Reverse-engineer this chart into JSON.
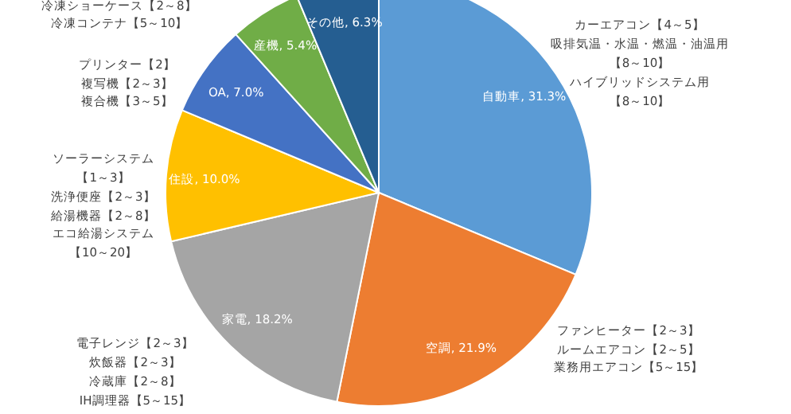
{
  "chart_data": {
    "type": "pie",
    "categories": [
      "自動車",
      "空調",
      "家電",
      "住設",
      "OA",
      "産機",
      "その他"
    ],
    "values": [
      31.3,
      21.9,
      18.2,
      10.0,
      7.0,
      5.4,
      6.3
    ],
    "colors": [
      "#5b9bd5",
      "#ed7d31",
      "#a5a5a5",
      "#ffc000",
      "#4472c4",
      "#70ad47",
      "#255e91"
    ],
    "value_labels": [
      ", 31.3%",
      ", 21.9%",
      ", 18.2%",
      ", 10.0%",
      ", 7.0%",
      ", 5.4%",
      ", 6.3%"
    ],
    "annotations": [
      "冷凍ショーケース【2～8】",
      "冷凍コンテナ【5～10】",
      "プリンター【2】",
      "複写機【2～3】",
      "複合機【3～5】",
      "ソーラーシステム",
      "【1～3】",
      "洗浄便座【2～3】",
      "給湯機器【2～8】",
      "エコ給湯システム",
      "【10～20】",
      "電子レンジ【2～3】",
      "炊飯器【2～3】",
      "冷蔵庫【2～8】",
      "IH調理器【5～15】",
      "カーエアコン【4～5】",
      "吸排気温・水温・燃温・油温用",
      "【8～10】",
      "ハイブリッドシステム用",
      "【8～10】",
      "ファンヒーター【2～3】",
      "ルームエアコン【2～5】",
      "業務用エアコン【5～15】"
    ]
  }
}
